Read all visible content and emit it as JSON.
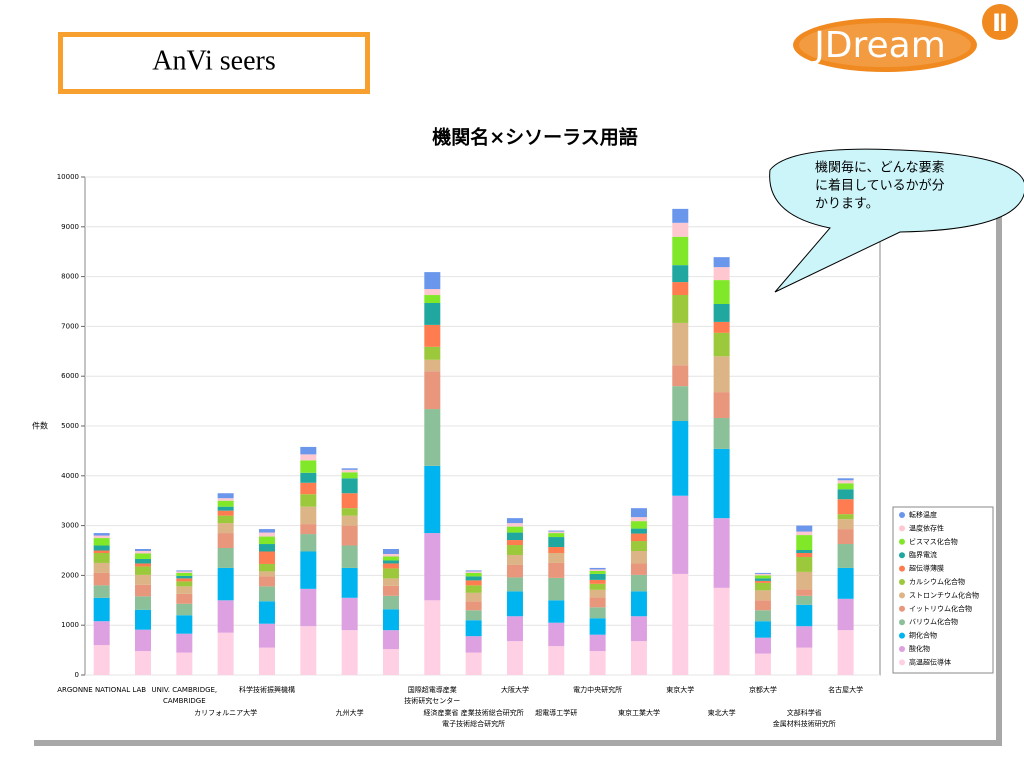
{
  "header": {
    "box_title": "AnVi seers",
    "logo": "JDream",
    "logo_mark": "Ⅱ"
  },
  "callout": [
    "機関毎に、どんな要素",
    "に着目しているかが分",
    "かります。"
  ],
  "chart_data": {
    "type": "stacked_bar",
    "title": "機関名×シソーラス用語",
    "y_label": "件数",
    "categories": [
      [
        "ARGONNE NATIONAL LAB"
      ],
      null,
      [
        "UNIV. CAMBRIDGE,",
        "CAMBRIDGE"
      ],
      [
        "カリフォルニア大学"
      ],
      [
        "科学技術振興機構"
      ],
      null,
      [
        "九州大学"
      ],
      null,
      [
        "国際超電導産業",
        "技術研究センター"
      ],
      [
        "経済産業省 産業技術総合研究所",
        "電子技術総合研究所"
      ],
      [
        "大阪大学"
      ],
      [
        "超電導工学研"
      ],
      [
        "電力中央研究所"
      ],
      [
        "東京工業大学"
      ],
      [
        "東京大学"
      ],
      [
        "東北大学"
      ],
      [
        "京都大学"
      ],
      [
        "文部科学省",
        "金属材料技術研究所"
      ],
      [
        "名古屋大学"
      ]
    ],
    "ylim": [
      0,
      10000
    ],
    "yticks": [
      0,
      1000,
      2000,
      3000,
      4000,
      5000,
      6000,
      7000,
      8000,
      9000,
      10000
    ],
    "grid": true,
    "legend": "right",
    "series": [
      {
        "name": "高温超伝導体",
        "color": "#ffd0e4",
        "values": [
          600,
          480,
          450,
          850,
          550,
          980,
          900,
          520,
          1500,
          450,
          680,
          580,
          480,
          680,
          2030,
          1750,
          430,
          550,
          900
        ]
      },
      {
        "name": "酸化物",
        "color": "#dda0e0",
        "values": [
          480,
          430,
          380,
          650,
          480,
          750,
          650,
          380,
          1350,
          330,
          500,
          470,
          330,
          500,
          1570,
          1400,
          320,
          430,
          630
        ]
      },
      {
        "name": "銅化合物",
        "color": "#00b4f0",
        "values": [
          470,
          400,
          370,
          650,
          450,
          750,
          600,
          420,
          1350,
          320,
          500,
          450,
          330,
          500,
          1500,
          1390,
          330,
          430,
          620
        ]
      },
      {
        "name": "バリウム化合物",
        "color": "#8cc098",
        "values": [
          250,
          270,
          230,
          400,
          300,
          350,
          450,
          270,
          1140,
          200,
          280,
          450,
          220,
          330,
          700,
          620,
          220,
          180,
          480
        ]
      },
      {
        "name": "イットリウム化合物",
        "color": "#e8967c",
        "values": [
          250,
          230,
          200,
          300,
          200,
          200,
          400,
          200,
          760,
          180,
          250,
          300,
          200,
          230,
          420,
          520,
          200,
          130,
          300
        ]
      },
      {
        "name": "ストロンチウム化合物",
        "color": "#dcb486",
        "values": [
          200,
          200,
          150,
          200,
          100,
          350,
          200,
          150,
          230,
          170,
          200,
          200,
          150,
          250,
          850,
          720,
          200,
          350,
          200
        ]
      },
      {
        "name": "カルシウム化合物",
        "color": "#9cc83c",
        "values": [
          200,
          170,
          100,
          150,
          150,
          250,
          150,
          200,
          260,
          150,
          200,
          0,
          120,
          200,
          560,
          470,
          150,
          300,
          100
        ]
      },
      {
        "name": "超伝導薄膜",
        "color": "#ff7c50",
        "values": [
          50,
          60,
          60,
          100,
          250,
          230,
          300,
          100,
          440,
          100,
          100,
          120,
          80,
          150,
          260,
          220,
          40,
          80,
          300
        ]
      },
      {
        "name": "臨界電流",
        "color": "#20a8a0",
        "values": [
          100,
          90,
          50,
          80,
          150,
          200,
          300,
          60,
          440,
          80,
          150,
          200,
          120,
          100,
          340,
          360,
          50,
          60,
          200
        ]
      },
      {
        "name": "ビスマス化合物",
        "color": "#80e828",
        "values": [
          150,
          110,
          60,
          120,
          150,
          250,
          120,
          80,
          160,
          70,
          120,
          80,
          60,
          150,
          570,
          480,
          60,
          300,
          120
        ]
      },
      {
        "name": "温度依存性",
        "color": "#ffc8d0",
        "values": [
          50,
          50,
          30,
          50,
          80,
          120,
          50,
          50,
          120,
          30,
          70,
          30,
          30,
          80,
          280,
          260,
          30,
          70,
          60
        ]
      },
      {
        "name": "転移温度",
        "color": "#6a96ec",
        "values": [
          50,
          40,
          20,
          100,
          70,
          150,
          30,
          100,
          340,
          20,
          100,
          20,
          30,
          180,
          280,
          200,
          20,
          120,
          40
        ]
      }
    ]
  }
}
